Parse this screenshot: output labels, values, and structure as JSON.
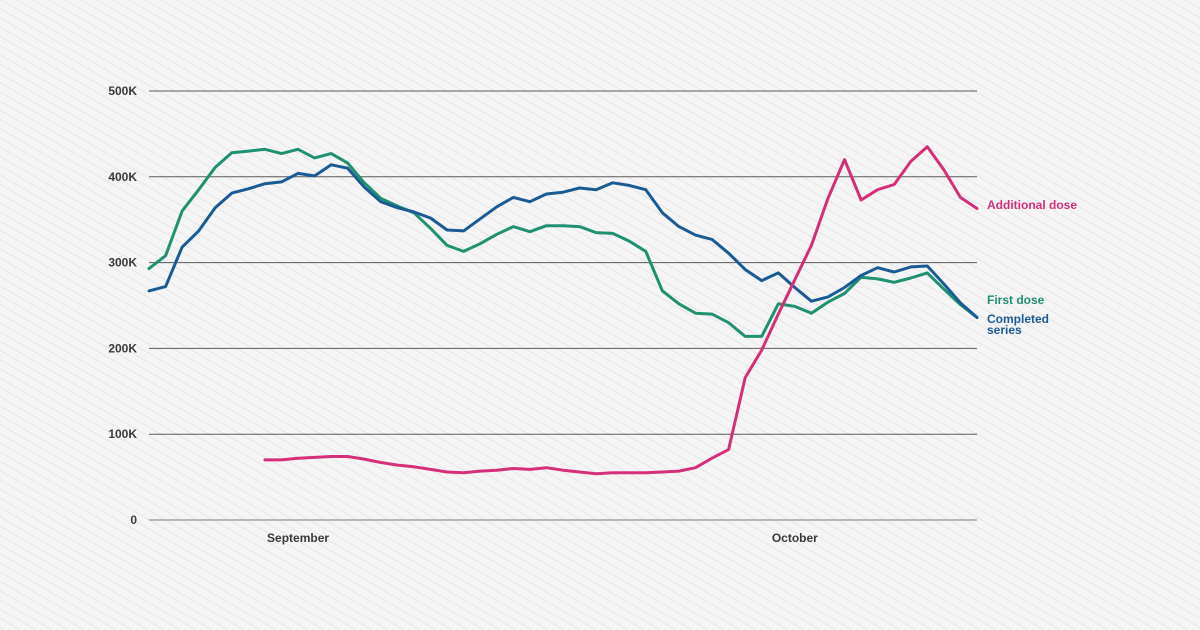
{
  "chart_data": {
    "type": "line",
    "title": "",
    "xlabel": "",
    "ylabel": "",
    "ylim": [
      0,
      500000
    ],
    "x_ticks": [
      "September",
      "October"
    ],
    "y_ticks": [
      "0",
      "100K",
      "200K",
      "300K",
      "400K",
      "500K"
    ],
    "grid": "horizontal",
    "legend": "direct labels at right end of lines",
    "series": [
      {
        "name": "First dose",
        "color": "#1f9170",
        "values": [
          293000,
          308000,
          360000,
          385000,
          411000,
          428000,
          430000,
          432000,
          427000,
          432000,
          422000,
          427000,
          416000,
          393000,
          375000,
          366000,
          358000,
          340000,
          320000,
          313000,
          322000,
          333000,
          342000,
          336000,
          343000,
          343000,
          342000,
          335000,
          334000,
          325000,
          313000,
          267000,
          252000,
          241000,
          240000,
          230000,
          214000,
          214000,
          252000,
          249000,
          241000,
          254000,
          264000,
          283000,
          281000,
          277000,
          282000,
          288000,
          269000,
          251000,
          236000
        ]
      },
      {
        "name": "Completed series",
        "color": "#1b5b93",
        "values": [
          267000,
          272000,
          318000,
          337000,
          364000,
          381000,
          386000,
          392000,
          394000,
          404000,
          401000,
          414000,
          410000,
          388000,
          371000,
          364000,
          359000,
          352000,
          338000,
          337000,
          351000,
          365000,
          376000,
          371000,
          380000,
          382000,
          387000,
          385000,
          393000,
          390000,
          385000,
          358000,
          342000,
          332000,
          327000,
          311000,
          292000,
          279000,
          288000,
          271000,
          255000,
          260000,
          271000,
          285000,
          294000,
          289000,
          295000,
          296000,
          275000,
          253000,
          236000
        ]
      },
      {
        "name": "Additional dose",
        "color": "#d62f7a",
        "values": [
          null,
          null,
          null,
          null,
          null,
          null,
          null,
          70000,
          70000,
          72000,
          73000,
          74000,
          74000,
          71000,
          67000,
          64000,
          62000,
          59000,
          56000,
          55000,
          57000,
          58000,
          60000,
          59000,
          61000,
          58000,
          56000,
          54000,
          55000,
          55000,
          55000,
          56000,
          57000,
          61000,
          72000,
          82000,
          166000,
          198000,
          240000,
          280000,
          320000,
          375000,
          420000,
          373000,
          385000,
          391000,
          418000,
          435000,
          408000,
          376000,
          363000
        ]
      }
    ]
  }
}
